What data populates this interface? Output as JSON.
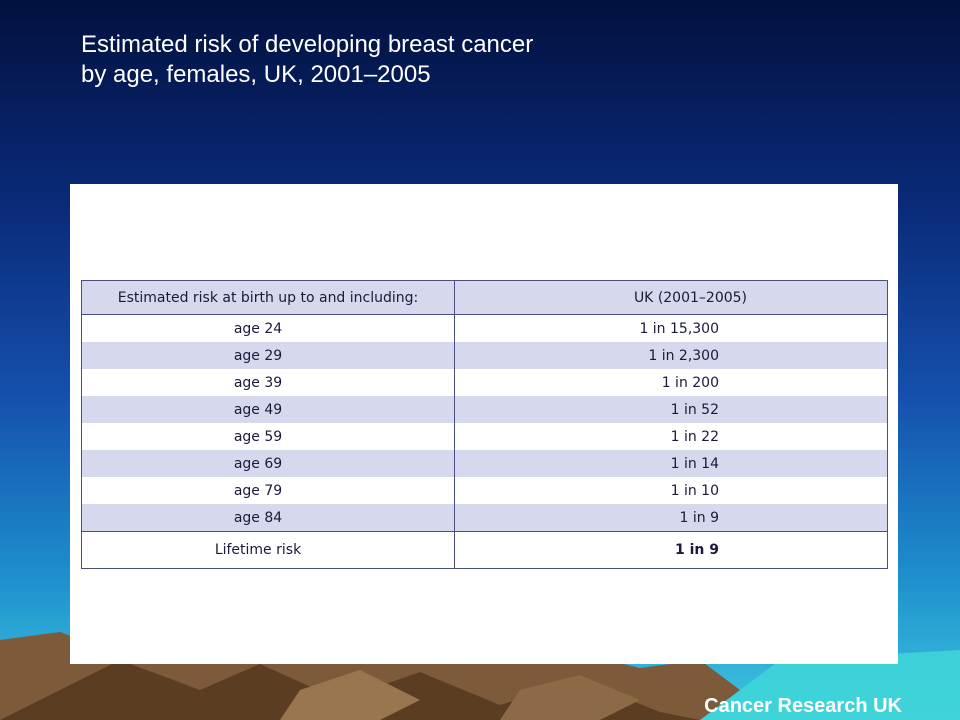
{
  "slide": {
    "title_line1": "Estimated risk of developing breast cancer",
    "title_line2": "by age, females, UK, 2001–2005",
    "source": "Cancer Research UK"
  },
  "table": {
    "col1_header": "Estimated risk at birth up to and including:",
    "col2_header": "UK (2001–2005)",
    "rows": [
      {
        "age": "age 24",
        "risk": "1 in 15,300"
      },
      {
        "age": "age 29",
        "risk": "1 in 2,300"
      },
      {
        "age": "age 39",
        "risk": "1 in 200"
      },
      {
        "age": "age 49",
        "risk": "1 in 52"
      },
      {
        "age": "age 59",
        "risk": "1 in 22"
      },
      {
        "age": "age 69",
        "risk": "1 in 14"
      },
      {
        "age": "age 79",
        "risk": "1 in 10"
      },
      {
        "age": "age 84",
        "risk": "1 in 9"
      }
    ],
    "lifetime_label": "Lifetime risk",
    "lifetime_value": "1 in 9"
  },
  "colors": {
    "header_fill": "#d6d8ee",
    "border": "#4a4e82",
    "title_text": "#ffffff"
  }
}
